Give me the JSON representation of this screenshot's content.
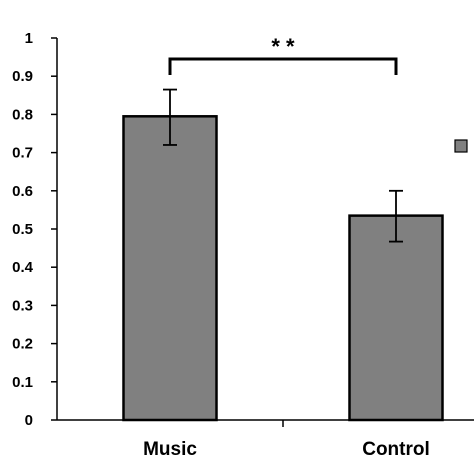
{
  "chart_data": {
    "type": "bar",
    "categories": [
      "Music",
      "Control"
    ],
    "values": [
      0.795,
      0.535
    ],
    "error_low": [
      0.72,
      0.467
    ],
    "error_high": [
      0.865,
      0.6
    ],
    "ylim": [
      0,
      1
    ],
    "yticks": [
      "0",
      "0.1",
      "0.2",
      "0.3",
      "0.4",
      "0.5",
      "0.6",
      "0.7",
      "0.8",
      "0.9",
      "1"
    ],
    "title": "",
    "xlabel": "",
    "ylabel": "",
    "grid": false,
    "legend_position": "right",
    "significance": {
      "label": "* *",
      "between": [
        "Music",
        "Control"
      ]
    },
    "colors": {
      "bar_fill": "#808080",
      "bar_stroke": "#000000",
      "legend_marker": "#808080"
    }
  }
}
